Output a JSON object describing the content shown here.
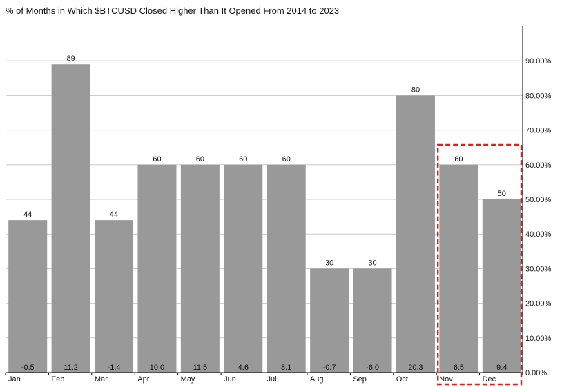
{
  "chart_data": {
    "type": "bar",
    "title": "% of Months in Which $BTCUSD Closed Higher Than It Opened From 2014 to 2023",
    "categories": [
      "Jan",
      "Feb",
      "Mar",
      "Apr",
      "May",
      "Jun",
      "Jul",
      "Aug",
      "Sep",
      "Oct",
      "Nov",
      "Dec"
    ],
    "values": [
      44,
      89,
      44,
      60,
      60,
      60,
      60,
      30,
      30,
      80,
      60,
      50
    ],
    "value_labels": [
      "44",
      "89",
      "44",
      "60",
      "60",
      "60",
      "60",
      "30",
      "30",
      "80",
      "60",
      "50"
    ],
    "bottom_labels": [
      "-0.5",
      "11.2",
      "-1.4",
      "10.0",
      "11.5",
      "4.6",
      "8.1",
      "-0.7",
      "-6.0",
      "20.3",
      "6.5",
      "9.4"
    ],
    "y_axis": {
      "position": "right",
      "ylim": [
        0,
        100
      ],
      "ticks": [
        0,
        10,
        20,
        30,
        40,
        50,
        60,
        70,
        80,
        90
      ],
      "tick_labels": [
        "0.00%",
        "10.00%",
        "20.00%",
        "30.00%",
        "40.00%",
        "50.00%",
        "60.00%",
        "70.00%",
        "80.00%",
        "90.00%"
      ]
    },
    "grid": true,
    "bar_color": "#999999",
    "grid_color": "#c8c8c8",
    "highlight": {
      "categories": [
        "Nov",
        "Dec"
      ],
      "style": "dashed-box",
      "color": "#e01e1e"
    }
  }
}
